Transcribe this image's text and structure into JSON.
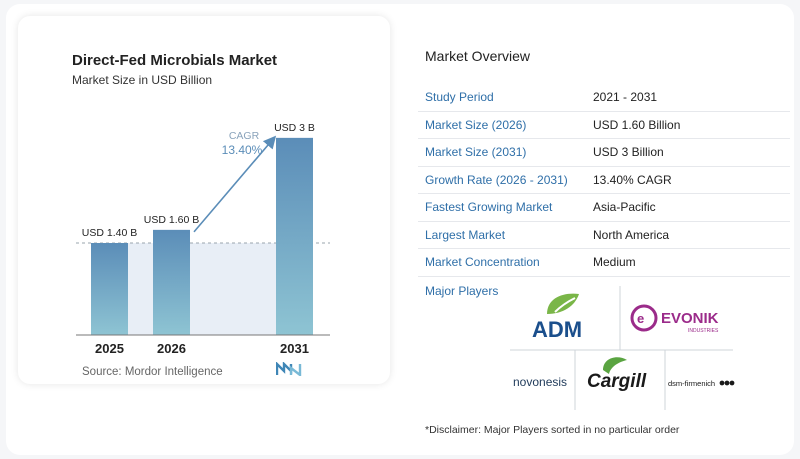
{
  "chart": {
    "title": "Direct-Fed Microbials Market",
    "subtitle": "Market Size in USD Billion",
    "cagr_label": "CAGR",
    "cagr_value": "13.40%",
    "source": "Source: Mordor Intelligence"
  },
  "chart_data": {
    "type": "bar",
    "categories": [
      "2025",
      "2026",
      "2031"
    ],
    "values": [
      1.4,
      1.6,
      3.0
    ],
    "data_labels": [
      "USD 1.40 B",
      "USD 1.60 B",
      "USD 3 B"
    ],
    "title": "Direct-Fed Microbials Market",
    "subtitle": "Market Size in USD Billion",
    "ylim": [
      0,
      3.15
    ],
    "colors": {
      "bar_top": "#5b8db8",
      "bar_bottom": "#8ec4d3",
      "arrow": "#5b8db8",
      "baseline_fill": "#e8eef6"
    }
  },
  "overview": {
    "title": "Market Overview",
    "rows": [
      {
        "key": "Study Period",
        "value": "2021 - 2031"
      },
      {
        "key": "Market Size (2026)",
        "value": "USD 1.60 Billion"
      },
      {
        "key": "Market Size (2031)",
        "value": "USD 3 Billion"
      },
      {
        "key": "Growth Rate (2026 - 2031)",
        "value": "13.40% CAGR"
      },
      {
        "key": "Fastest Growing Market",
        "value": "Asia-Pacific"
      },
      {
        "key": "Largest Market",
        "value": "North America"
      },
      {
        "key": "Market Concentration",
        "value": "Medium"
      }
    ]
  },
  "players": {
    "label": "Major Players",
    "logos": [
      "ADM",
      "EVONIK",
      "INDUSTRIES",
      "novonesis",
      "Cargill",
      "dsm-firmenich"
    ]
  },
  "disclaimer": "*Disclaimer: Major Players sorted in no particular order"
}
